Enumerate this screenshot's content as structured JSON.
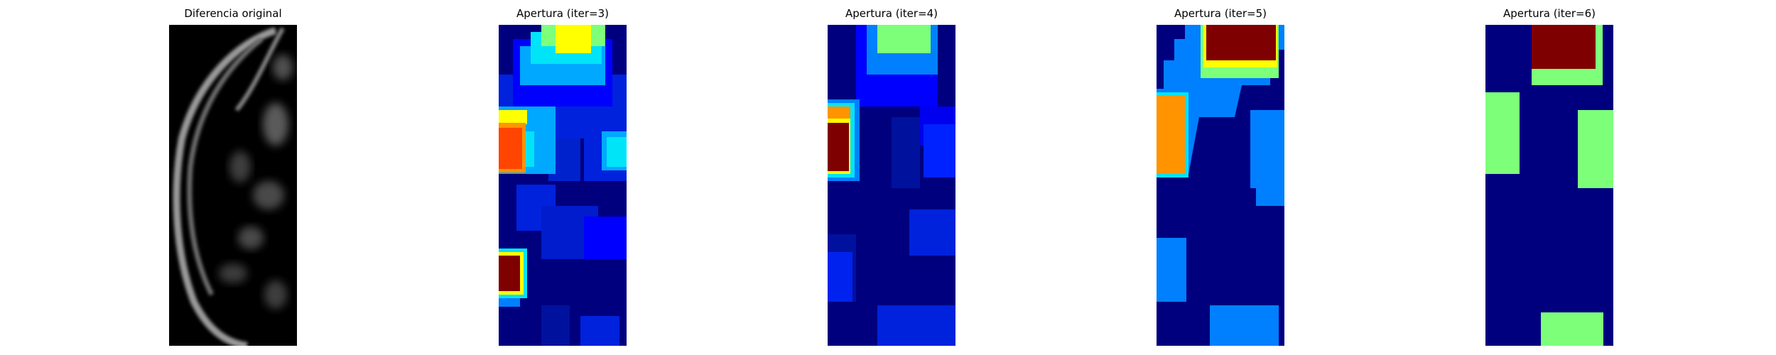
{
  "figure": {
    "panels": [
      {
        "title": "Diferencia original",
        "cmap": "gray"
      },
      {
        "title": "Apertura (iter=3)",
        "cmap": "jet"
      },
      {
        "title": "Apertura (iter=4)",
        "cmap": "jet"
      },
      {
        "title": "Apertura (iter=5)",
        "cmap": "jet"
      },
      {
        "title": "Apertura (iter=6)",
        "cmap": "jet"
      }
    ]
  },
  "colors": {
    "background": "#ffffff",
    "jet_darkblue": "#00007f",
    "jet_blue": "#0000ff",
    "jet_midblue": "#0022dd",
    "jet_lightblue": "#0080ff",
    "jet_skyblue": "#00a8ff",
    "jet_cyan": "#00e4f8",
    "jet_green": "#7dff7a",
    "jet_yellow": "#ffff00",
    "jet_orange": "#ff9400",
    "jet_redorange": "#ff4500",
    "jet_darkred": "#7f0000",
    "gray_black": "#000000",
    "gray_white": "#ffffff"
  }
}
